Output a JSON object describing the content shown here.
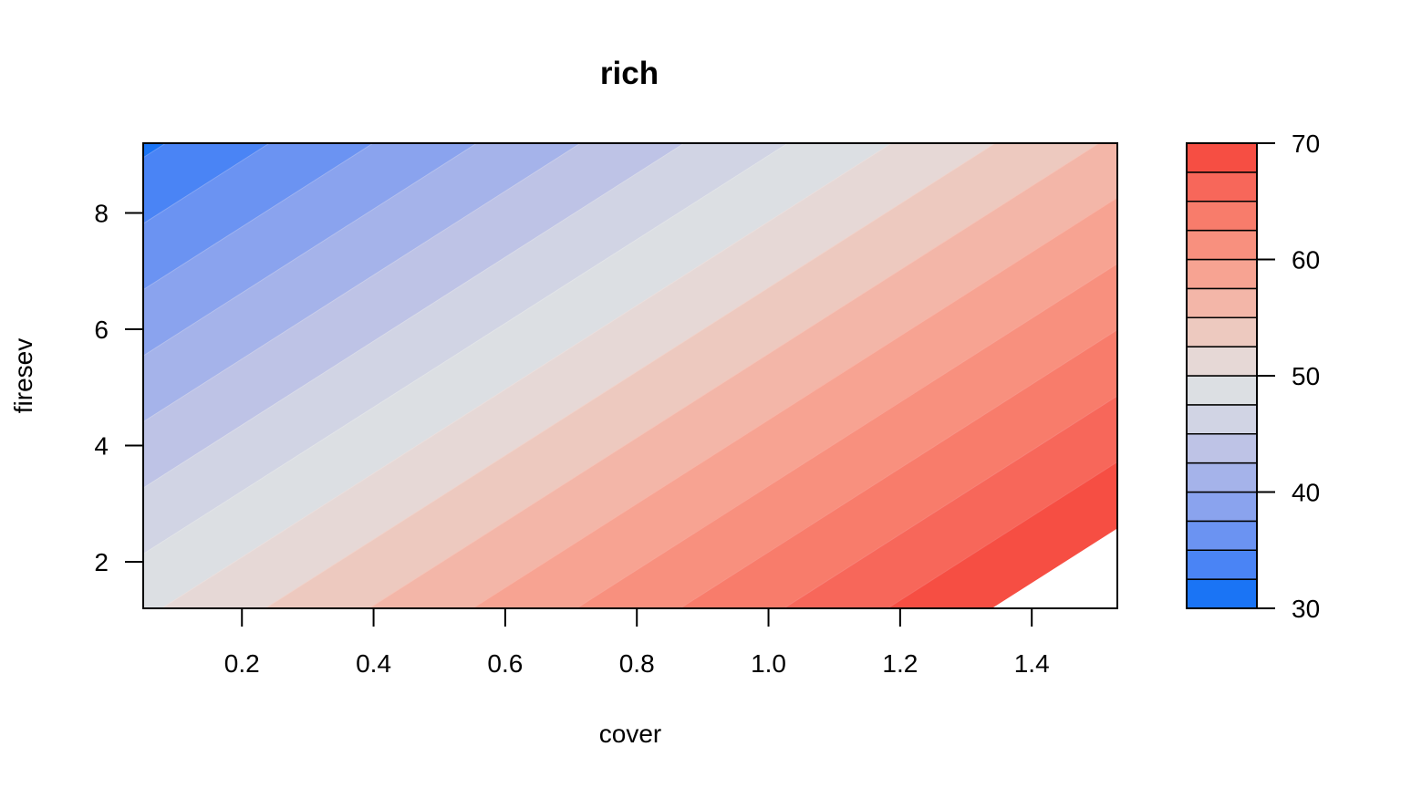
{
  "chart_data": {
    "type": "heatmap",
    "subtype": "filled-contour",
    "title": "rich",
    "xlabel": "cover",
    "ylabel": "firesev",
    "xlim": [
      0.05,
      1.53
    ],
    "ylim": [
      1.2,
      9.2
    ],
    "x_ticks": [
      0.2,
      0.4,
      0.6,
      0.8,
      1.0,
      1.2,
      1.4
    ],
    "x_tick_labels": [
      "0.2",
      "0.4",
      "0.6",
      "0.8",
      "1.0",
      "1.2",
      "1.4"
    ],
    "y_ticks": [
      2,
      4,
      6,
      8
    ],
    "y_tick_labels": [
      "2",
      "4",
      "6",
      "8"
    ],
    "surface": {
      "description": "linear surface rich = intercept + b_cover*cover + b_firesev*firesev",
      "intercept": 51.4,
      "b_cover": 15.87,
      "b_firesev": -2.2
    },
    "levels": [
      30,
      32.5,
      35,
      37.5,
      40,
      42.5,
      45,
      47.5,
      50,
      52.5,
      55,
      57.5,
      60,
      62.5,
      65,
      67.5,
      70
    ],
    "level_colors": [
      "#1a74f5",
      "#4a84f5",
      "#6b93f2",
      "#8aa3ee",
      "#a5b3ea",
      "#bec3e6",
      "#d1d4e4",
      "#dcdfe3",
      "#e6d8d6",
      "#edc9bf",
      "#f3b6a8",
      "#f7a392",
      "#f8907e",
      "#f87c6b",
      "#f7675a",
      "#f64e43",
      "#f33a33"
    ],
    "colorkey": {
      "ticks": [
        30,
        40,
        50,
        60,
        70
      ],
      "tick_labels": [
        "30",
        "40",
        "50",
        "60",
        "70"
      ],
      "placement": "right"
    },
    "grid": false,
    "legend": "none"
  }
}
